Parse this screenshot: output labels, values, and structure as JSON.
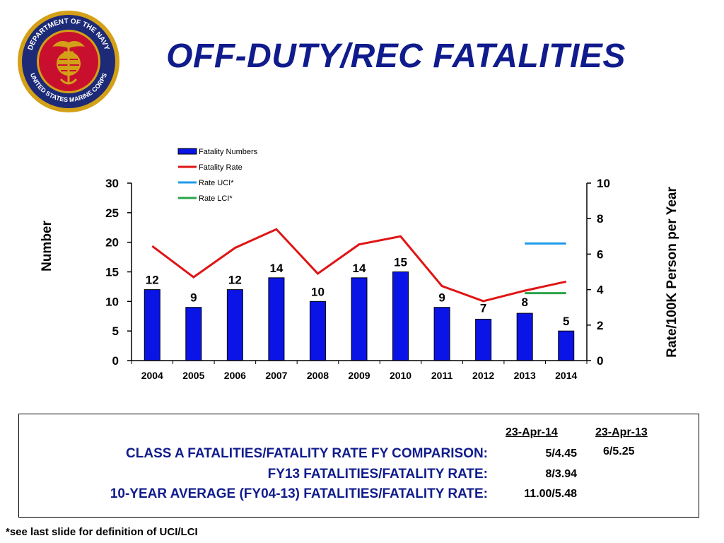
{
  "title": "OFF-DUTY/REC FATALITIES",
  "seal": {
    "top_text": "DEPARTMENT OF THE NAVY",
    "bottom_text": "UNITED STATES MARINE CORPS",
    "colors": {
      "ring": "#1c2a78",
      "inner": "#c8102e",
      "gold": "#d4a017"
    }
  },
  "chart_data": {
    "type": "bar",
    "categories": [
      "2004",
      "2005",
      "2006",
      "2007",
      "2008",
      "2009",
      "2010",
      "2011",
      "2012",
      "2013",
      "2014"
    ],
    "series": [
      {
        "name": "Fatality Numbers",
        "kind": "bar",
        "axis": "left",
        "color": "#0a14e6",
        "values": [
          12,
          9,
          12,
          14,
          10,
          14,
          15,
          9,
          7,
          8,
          5
        ]
      },
      {
        "name": "Fatality Rate",
        "kind": "line",
        "axis": "right",
        "color": "#e01414",
        "values": [
          6.45,
          4.7,
          6.35,
          7.4,
          4.9,
          6.55,
          7.0,
          4.2,
          3.35,
          3.94,
          4.45
        ]
      },
      {
        "name": "Rate UCI*",
        "kind": "line",
        "axis": "right",
        "color": "#1e9bea",
        "x": [
          "2013",
          "2014"
        ],
        "values": [
          6.6,
          6.6
        ]
      },
      {
        "name": "Rate LCI*",
        "kind": "line",
        "axis": "right",
        "color": "#2aa44a",
        "x": [
          "2013",
          "2014"
        ],
        "values": [
          3.8,
          3.8
        ]
      }
    ],
    "data_labels": [
      "12",
      "9",
      "12",
      "14",
      "10",
      "14",
      "15",
      "9",
      "7",
      "8",
      "5"
    ],
    "ylabel": "Number",
    "y2label": "Rate/100K Person per Year",
    "ylim": [
      0,
      30
    ],
    "y2lim": [
      0,
      10
    ],
    "yticks": [
      "0",
      "5",
      "10",
      "15",
      "20",
      "25",
      "30"
    ],
    "y2ticks": [
      "0",
      "2",
      "4",
      "6",
      "8",
      "10"
    ],
    "grid": false,
    "legend_position": "top-center"
  },
  "summary": {
    "col_headers": [
      "23-Apr-14",
      "23-Apr-13"
    ],
    "rows": [
      {
        "label": "CLASS A FATALITIES/FATALITY RATE FY COMPARISON:",
        "v1": "5/4.45",
        "v2": "6/5.25"
      },
      {
        "label": "FY13 FATALITIES/FATALITY RATE:",
        "v1": "8/3.94",
        "v2": ""
      },
      {
        "label": "10-YEAR AVERAGE (FY04-13) FATALITIES/FATALITY RATE:",
        "v1": "11.00/5.48",
        "v2": ""
      }
    ]
  },
  "footnote": "*see last slide for definition of UCI/LCI"
}
